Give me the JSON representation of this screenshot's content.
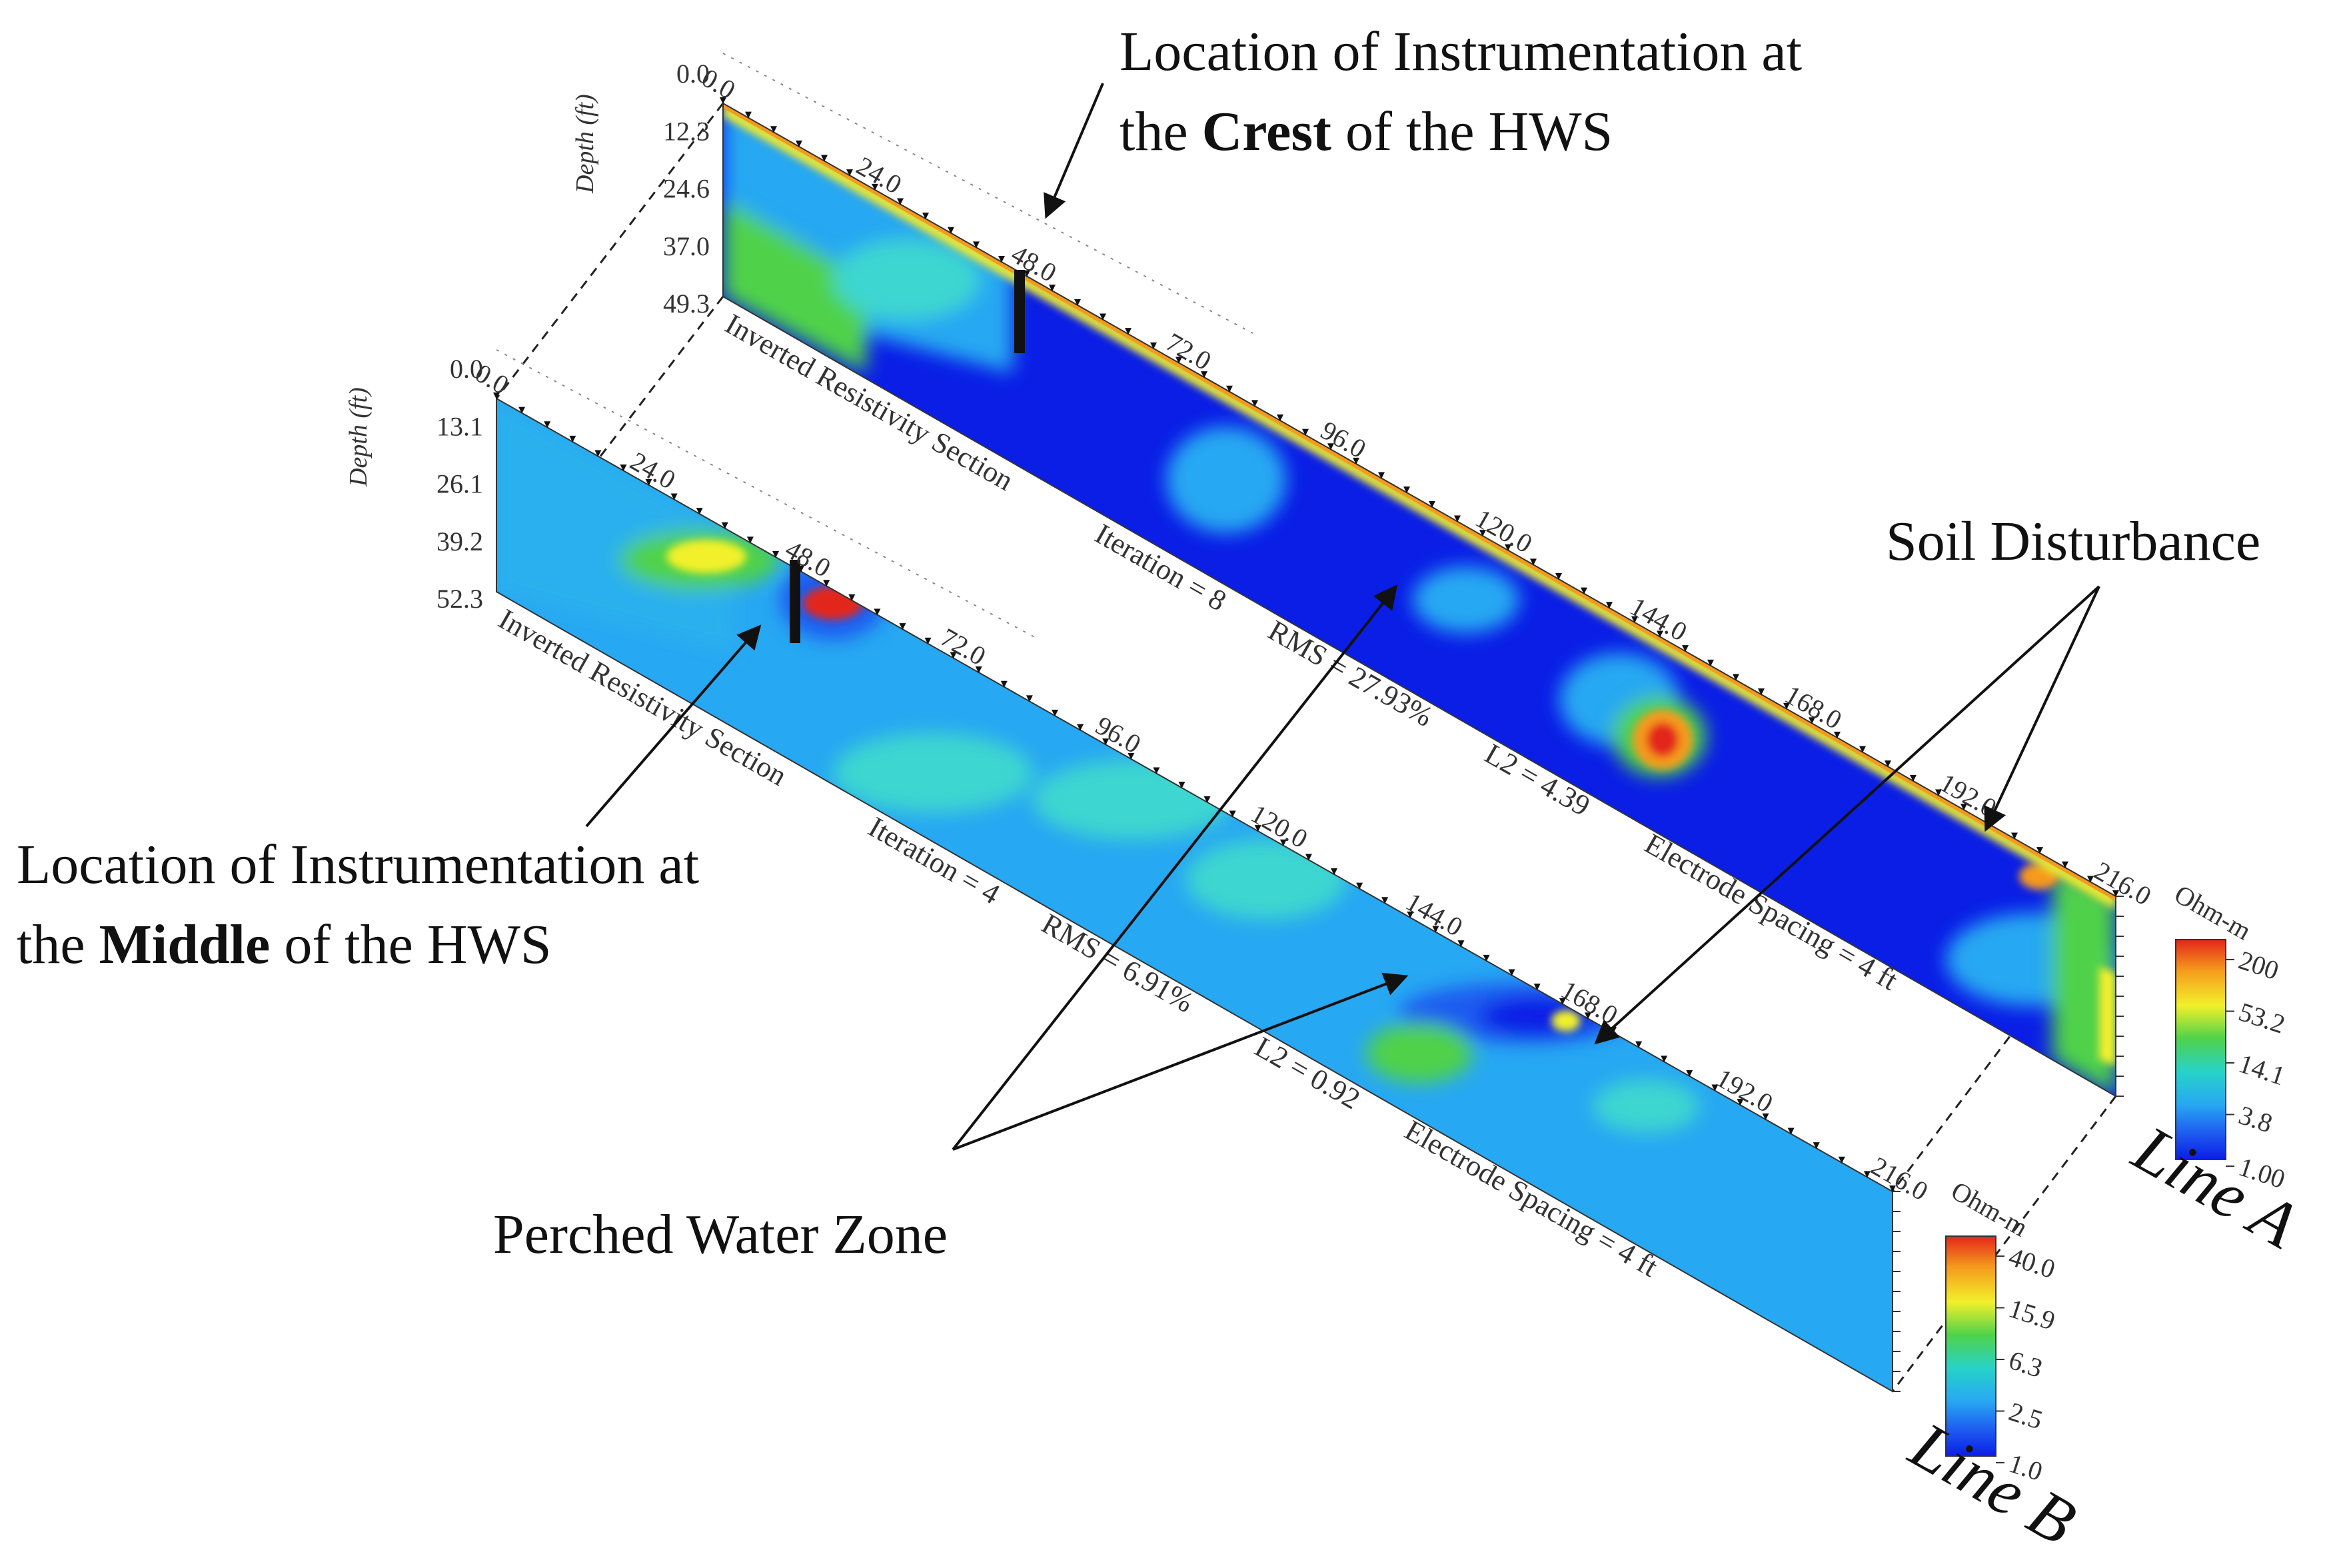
{
  "callouts": {
    "crest_line1": "Location of Instrumentation at",
    "crest_pre": "the ",
    "crest_bold": "Crest",
    "crest_post": " of the HWS",
    "middle_line1": "Location of Instrumentation at",
    "middle_pre": "the ",
    "middle_bold": "Middle",
    "middle_post": " of the HWS",
    "soil": "Soil Disturbance",
    "perched": "Perched Water Zone"
  },
  "line_a": {
    "name": "Line A",
    "depth_title": "Depth (ft)",
    "depths": [
      "0.0",
      "12.3",
      "24.6",
      "37.0",
      "49.3"
    ],
    "distances": [
      "0.0",
      "24.0",
      "48.0",
      "72.0",
      "96.0",
      "120.0",
      "144.0",
      "168.0",
      "192.0",
      "216.0"
    ],
    "section_title": "Inverted Resistivity Section",
    "iteration": "Iteration = 8",
    "rms": "RMS = 27.93%",
    "l2": "L2 = 4.39",
    "spacing": "Electrode Spacing = 4 ft",
    "colorbar": {
      "unit": "Ohm-m",
      "ticks": [
        "200",
        "53.2",
        "14.1",
        "3.8",
        "1.00"
      ]
    }
  },
  "line_b": {
    "name": "Line B",
    "depth_title": "Depth (ft)",
    "depths": [
      "0.0",
      "13.1",
      "26.1",
      "39.2",
      "52.3"
    ],
    "distances": [
      "0.0",
      "24.0",
      "48.0",
      "72.0",
      "96.0",
      "120.0",
      "144.0",
      "168.0",
      "192.0",
      "216.0"
    ],
    "section_title": "Inverted Resistivity Section",
    "iteration": "Iteration = 4",
    "rms": "RMS = 6.91%",
    "l2": "L2 = 0.92",
    "spacing": "Electrode Spacing = 4 ft",
    "colorbar": {
      "unit": "Ohm-m",
      "ticks": [
        "40.0",
        "15.9",
        "6.3",
        "2.5",
        "1.0"
      ]
    }
  },
  "colors": {
    "deep_blue": "#0a1ee6",
    "blue": "#1e6cf0",
    "cyan": "#27b8f2",
    "aqua": "#3ed6d0",
    "green": "#4fd24a",
    "yellow": "#f2f02a",
    "orange": "#f59a1c",
    "red": "#e3261b"
  }
}
